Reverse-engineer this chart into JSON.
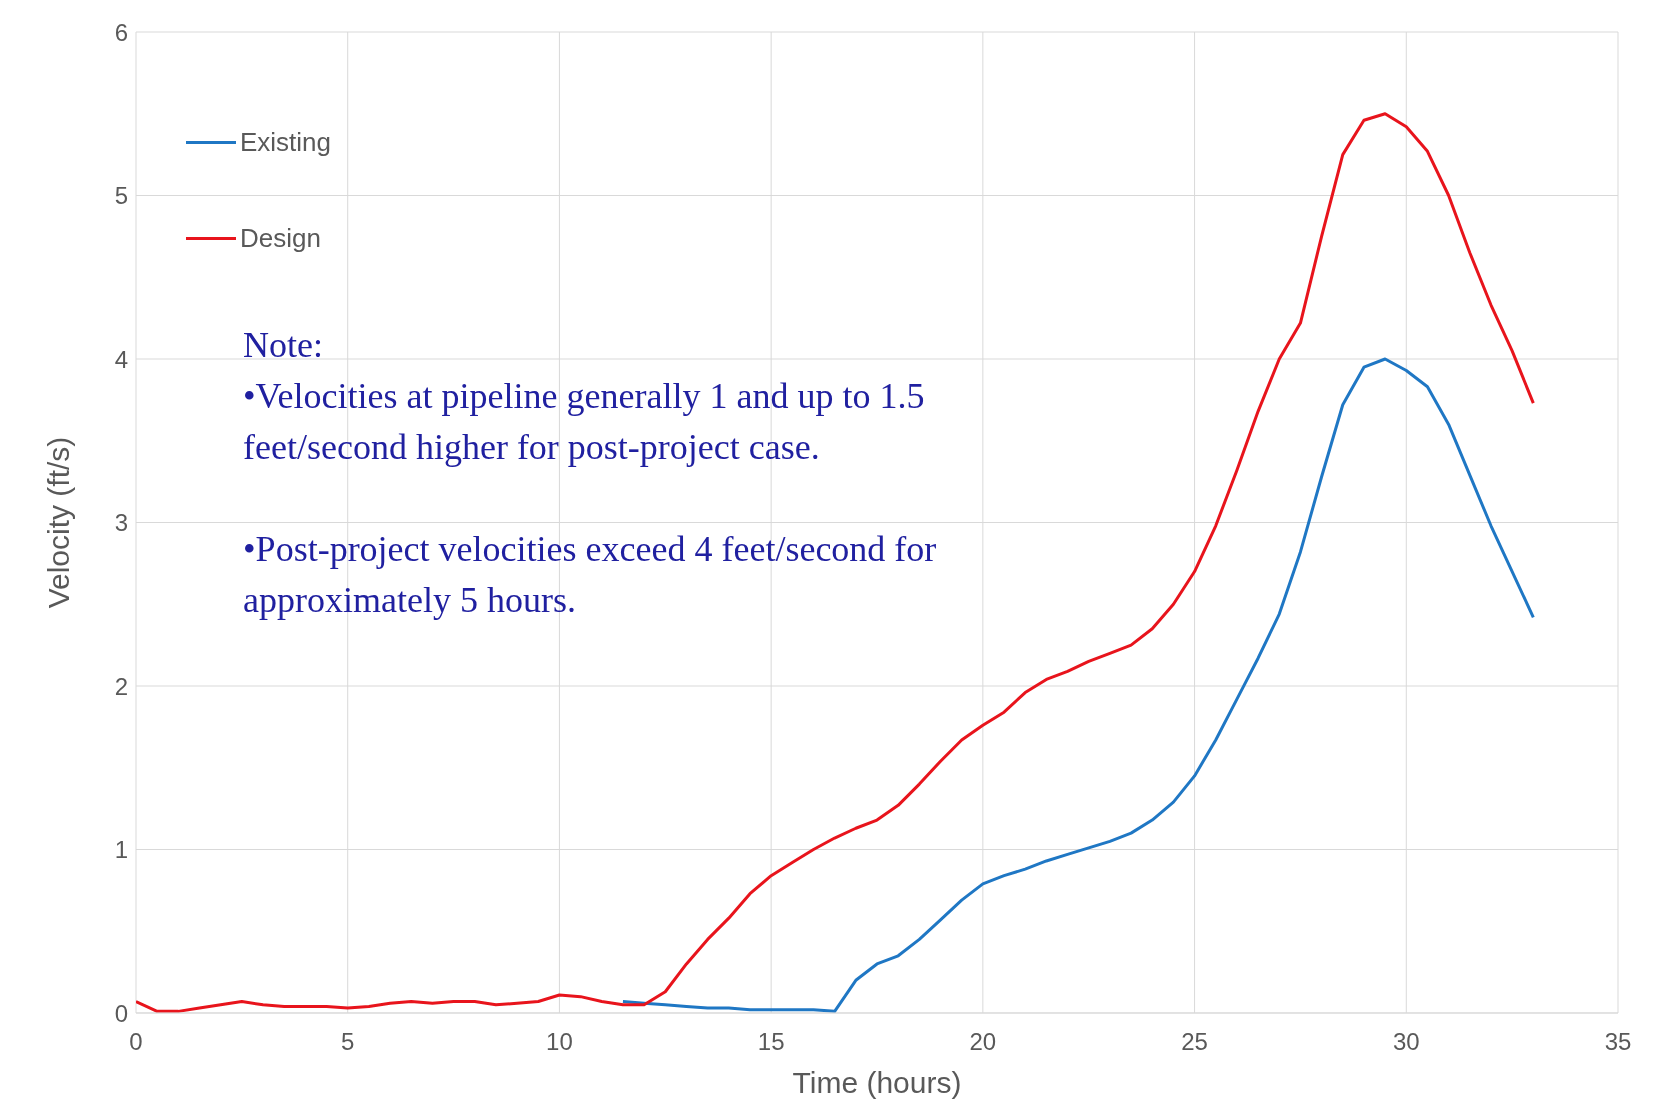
{
  "chart_data": {
    "type": "line",
    "xlabel": "Time (hours)",
    "ylabel": "Velocity (ft/s)",
    "x": [
      0,
      0.5,
      1,
      1.5,
      2,
      2.5,
      3,
      3.5,
      4,
      4.5,
      5,
      5.5,
      6,
      6.5,
      7,
      7.5,
      8,
      8.5,
      9,
      9.5,
      10,
      10.5,
      11,
      11.5,
      12,
      12.5,
      13,
      13.5,
      14,
      14.5,
      15,
      15.5,
      16,
      16.5,
      17,
      17.5,
      18,
      18.5,
      19,
      19.5,
      20,
      20.5,
      21,
      21.5,
      22,
      22.5,
      23,
      23.5,
      24,
      24.5,
      25,
      25.5,
      26,
      26.5,
      27,
      27.5,
      28,
      28.5,
      29,
      29.5,
      30,
      30.5,
      31,
      31.5,
      32,
      32.5,
      33
    ],
    "series": [
      {
        "name": "Existing",
        "color": "#1f77c4",
        "values": [
          null,
          null,
          null,
          null,
          null,
          null,
          null,
          null,
          null,
          null,
          null,
          null,
          null,
          null,
          null,
          null,
          null,
          null,
          null,
          null,
          null,
          null,
          null,
          0.07,
          0.06,
          0.05,
          0.04,
          0.03,
          0.03,
          0.02,
          0.02,
          0.02,
          0.02,
          0.01,
          0.2,
          0.3,
          0.35,
          0.45,
          0.57,
          0.69,
          0.79,
          0.84,
          0.88,
          0.93,
          0.97,
          1.01,
          1.05,
          1.1,
          1.18,
          1.29,
          1.45,
          1.67,
          1.92,
          2.17,
          2.44,
          2.82,
          3.28,
          3.72,
          3.95,
          4.0,
          3.93,
          3.83,
          3.6,
          3.29,
          2.98,
          2.7,
          2.42
        ]
      },
      {
        "name": "Design",
        "color": "#e8141c",
        "values": [
          0.07,
          0.01,
          0.01,
          0.03,
          0.05,
          0.07,
          0.05,
          0.04,
          0.04,
          0.04,
          0.03,
          0.04,
          0.06,
          0.07,
          0.06,
          0.07,
          0.07,
          0.05,
          0.06,
          0.07,
          0.11,
          0.1,
          0.07,
          0.05,
          0.05,
          0.13,
          0.3,
          0.45,
          0.58,
          0.73,
          0.84,
          0.92,
          1.0,
          1.07,
          1.13,
          1.18,
          1.27,
          1.4,
          1.54,
          1.67,
          1.76,
          1.84,
          1.96,
          2.04,
          2.09,
          2.15,
          2.2,
          2.25,
          2.35,
          2.5,
          2.7,
          2.98,
          3.32,
          3.68,
          4.0,
          4.22,
          4.75,
          5.25,
          5.46,
          5.5,
          5.42,
          5.27,
          5.0,
          4.65,
          4.33,
          4.05,
          3.73
        ]
      }
    ],
    "xlim": [
      0,
      35
    ],
    "xticks": [
      0,
      5,
      10,
      15,
      20,
      25,
      30,
      35
    ],
    "ylim": [
      0,
      6
    ],
    "yticks": [
      0,
      1,
      2,
      3,
      4,
      5,
      6
    ],
    "grid": true,
    "legend": "top left",
    "marker": "none",
    "line_style": "solid",
    "annotations": [
      "Note:",
      "•Velocities at pipeline generally 1 and up to 1.5 feet/second higher for post-project case.",
      "•Post-project velocities exceed 4 feet/second for approximately 5 hours."
    ]
  }
}
